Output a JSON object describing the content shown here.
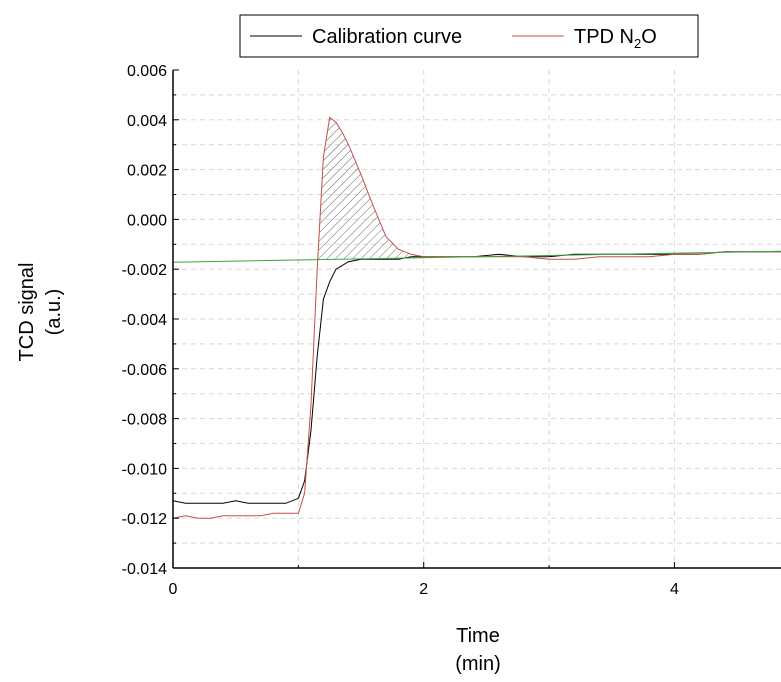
{
  "chart_data": {
    "type": "line",
    "title": "",
    "xlabel": "Time",
    "xlabel_unit": "(min)",
    "ylabel": "TCD signal",
    "ylabel_unit": "(a.u.)",
    "xlim": [
      0,
      4.85
    ],
    "ylim": [
      -0.014,
      0.006
    ],
    "xticks": [
      0,
      2,
      4
    ],
    "xtick_labels": [
      "0",
      "2",
      "4"
    ],
    "yticks": [
      -0.014,
      -0.012,
      -0.01,
      -0.008,
      -0.006,
      -0.004,
      -0.002,
      0.0,
      0.002,
      0.004,
      0.006
    ],
    "ytick_labels": [
      "-0.014",
      "-0.012",
      "-0.010",
      "-0.008",
      "-0.006",
      "-0.004",
      "-0.002",
      "0.000",
      "0.002",
      "0.004",
      "0.006"
    ],
    "grid": true,
    "legend_position": "top",
    "legend": {
      "calibration": "Calibration curve",
      "tpd_prefix": "TPD N",
      "tpd_subscript": "2",
      "tpd_suffix": "O"
    },
    "series": [
      {
        "name": "Calibration curve",
        "color": "#000000",
        "x": [
          0,
          0.1,
          0.2,
          0.3,
          0.4,
          0.5,
          0.6,
          0.7,
          0.8,
          0.9,
          1.0,
          1.05,
          1.1,
          1.15,
          1.2,
          1.25,
          1.3,
          1.4,
          1.5,
          1.6,
          1.7,
          1.8,
          1.9,
          2.0,
          2.2,
          2.4,
          2.6,
          2.8,
          3.0,
          3.2,
          3.4,
          3.6,
          3.8,
          4.0,
          4.2,
          4.4,
          4.6,
          4.85
        ],
        "y": [
          -0.0113,
          -0.0114,
          -0.0114,
          -0.0114,
          -0.0114,
          -0.0113,
          -0.0114,
          -0.0114,
          -0.0114,
          -0.0114,
          -0.0112,
          -0.0105,
          -0.0085,
          -0.0055,
          -0.0032,
          -0.0025,
          -0.002,
          -0.0017,
          -0.0016,
          -0.0016,
          -0.0016,
          -0.0016,
          -0.0015,
          -0.0015,
          -0.0015,
          -0.0015,
          -0.0014,
          -0.0015,
          -0.0015,
          -0.0014,
          -0.0014,
          -0.0014,
          -0.0014,
          -0.0014,
          -0.0014,
          -0.0013,
          -0.0013,
          -0.0013
        ]
      },
      {
        "name": "TPD N2O",
        "color": "#c0504d",
        "x": [
          0,
          0.1,
          0.2,
          0.3,
          0.4,
          0.5,
          0.6,
          0.7,
          0.8,
          0.9,
          1.0,
          1.05,
          1.1,
          1.15,
          1.2,
          1.25,
          1.3,
          1.35,
          1.4,
          1.5,
          1.6,
          1.7,
          1.8,
          1.9,
          2.0,
          2.2,
          2.4,
          2.6,
          2.8,
          3.0,
          3.2,
          3.4,
          3.6,
          3.8,
          4.0,
          4.2,
          4.4,
          4.6,
          4.85
        ],
        "y": [
          -0.012,
          -0.0119,
          -0.012,
          -0.012,
          -0.0119,
          -0.0119,
          -0.0119,
          -0.0119,
          -0.0118,
          -0.0118,
          -0.0118,
          -0.011,
          -0.0075,
          -0.002,
          0.0025,
          0.0041,
          0.0039,
          0.0035,
          0.003,
          0.0018,
          0.0005,
          -0.0007,
          -0.0012,
          -0.0014,
          -0.0015,
          -0.0015,
          -0.0015,
          -0.0015,
          -0.0015,
          -0.0016,
          -0.0016,
          -0.0015,
          -0.0015,
          -0.0015,
          -0.0014,
          -0.0014,
          -0.0013,
          -0.0013,
          -0.0013
        ]
      },
      {
        "name": "",
        "color": "#3aa53a",
        "x": [
          0,
          4.85
        ],
        "y": [
          -0.00172,
          -0.00128
        ]
      }
    ],
    "shaded_area": {
      "between": [
        "TPD N2O",
        "baseline"
      ],
      "x_range": [
        1.15,
        2.05
      ],
      "pattern": "diagonal hatch"
    }
  }
}
